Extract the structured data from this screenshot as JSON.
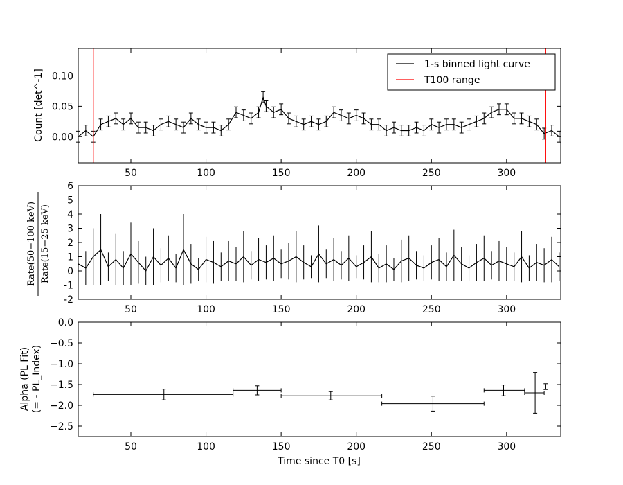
{
  "chart_data": [
    {
      "type": "line",
      "panel": "light-curve",
      "ylabel": "Count [det^-1]",
      "xlim": [
        15,
        336
      ],
      "ylim": [
        -0.043,
        0.145
      ],
      "xticks": [
        50,
        100,
        150,
        200,
        250,
        300
      ],
      "yticks": [
        0.0,
        0.05,
        0.1
      ],
      "ytick_labels": [
        "0.00",
        "0.05",
        "0.10"
      ],
      "legend": {
        "placement": "top-right",
        "entries": [
          {
            "label": "1-s binned light curve",
            "color": "#000000"
          },
          {
            "label": "T100 range",
            "color": "#ff0000"
          }
        ]
      },
      "t100_range": [
        25,
        326
      ],
      "series": [
        {
          "name": "1-s binned light curve",
          "color": "#000000",
          "error": 0.009,
          "x": [
            15,
            20,
            25,
            30,
            35,
            40,
            45,
            50,
            55,
            60,
            65,
            70,
            75,
            80,
            85,
            90,
            95,
            100,
            105,
            110,
            115,
            120,
            125,
            130,
            135,
            138,
            140,
            145,
            150,
            155,
            160,
            165,
            170,
            175,
            180,
            185,
            190,
            195,
            200,
            205,
            210,
            215,
            220,
            225,
            230,
            235,
            240,
            245,
            250,
            255,
            260,
            265,
            270,
            275,
            280,
            285,
            290,
            295,
            300,
            305,
            310,
            315,
            320,
            325,
            330,
            335
          ],
          "y": [
            0.0,
            0.01,
            0.0,
            0.02,
            0.025,
            0.03,
            0.02,
            0.03,
            0.015,
            0.015,
            0.01,
            0.02,
            0.025,
            0.02,
            0.015,
            0.03,
            0.02,
            0.015,
            0.015,
            0.01,
            0.02,
            0.04,
            0.035,
            0.03,
            0.04,
            0.065,
            0.05,
            0.04,
            0.045,
            0.03,
            0.025,
            0.02,
            0.025,
            0.02,
            0.025,
            0.04,
            0.035,
            0.03,
            0.035,
            0.03,
            0.02,
            0.02,
            0.01,
            0.015,
            0.01,
            0.01,
            0.015,
            0.01,
            0.02,
            0.015,
            0.02,
            0.02,
            0.015,
            0.02,
            0.025,
            0.03,
            0.04,
            0.045,
            0.045,
            0.03,
            0.03,
            0.025,
            0.02,
            0.005,
            0.01,
            0.0
          ]
        }
      ]
    },
    {
      "type": "line",
      "panel": "hardness-ratio",
      "ylabel_top": "Rate(50−100 keV)",
      "ylabel_bottom": "Rate(15−25 keV)",
      "xlim": [
        15,
        336
      ],
      "ylim": [
        -2,
        6
      ],
      "xticks": [
        50,
        100,
        150,
        200,
        250,
        300
      ],
      "yticks": [
        -2,
        -1,
        0,
        1,
        2,
        3,
        4,
        5,
        6
      ],
      "series": [
        {
          "name": "",
          "color": "#000000",
          "x": [
            15,
            20,
            25,
            30,
            35,
            40,
            45,
            50,
            55,
            60,
            65,
            70,
            75,
            80,
            85,
            90,
            95,
            100,
            105,
            110,
            115,
            120,
            125,
            130,
            135,
            140,
            145,
            150,
            155,
            160,
            165,
            170,
            175,
            180,
            185,
            190,
            195,
            200,
            205,
            210,
            215,
            220,
            225,
            230,
            235,
            240,
            245,
            250,
            255,
            260,
            265,
            270,
            275,
            280,
            285,
            290,
            295,
            300,
            305,
            310,
            315,
            320,
            325,
            330,
            335
          ],
          "y": [
            0.5,
            0.2,
            1.0,
            1.5,
            0.3,
            0.8,
            0.2,
            1.2,
            0.6,
            0.0,
            1.0,
            0.4,
            0.9,
            0.2,
            1.5,
            0.5,
            0.1,
            0.8,
            0.6,
            0.3,
            0.7,
            0.5,
            1.0,
            0.4,
            0.8,
            0.6,
            0.9,
            0.5,
            0.7,
            1.0,
            0.6,
            0.3,
            1.2,
            0.5,
            0.8,
            0.4,
            0.9,
            0.3,
            0.6,
            1.0,
            0.2,
            0.5,
            0.1,
            0.7,
            0.9,
            0.4,
            0.2,
            0.6,
            0.8,
            0.3,
            1.1,
            0.5,
            0.2,
            0.6,
            0.9,
            0.4,
            0.7,
            0.5,
            0.3,
            1.0,
            0.2,
            0.6,
            0.4,
            0.8,
            0.3
          ],
          "err": [
            1.5,
            1.2,
            2.0,
            2.5,
            1.0,
            1.8,
            1.2,
            2.2,
            1.5,
            1.0,
            2.0,
            1.2,
            1.6,
            1.0,
            2.5,
            1.4,
            0.8,
            1.6,
            1.5,
            1.0,
            1.4,
            1.2,
            1.8,
            1.0,
            1.5,
            1.2,
            1.6,
            1.0,
            1.3,
            1.8,
            1.2,
            0.8,
            2.0,
            1.0,
            1.5,
            1.0,
            1.6,
            0.8,
            1.2,
            1.8,
            1.0,
            1.3,
            0.8,
            1.5,
            1.6,
            1.0,
            0.9,
            1.2,
            1.5,
            1.0,
            1.8,
            1.2,
            0.9,
            1.3,
            1.6,
            1.0,
            1.4,
            1.2,
            1.0,
            1.8,
            0.9,
            1.3,
            1.2,
            1.6,
            1.0
          ]
        }
      ]
    },
    {
      "type": "scatter",
      "panel": "alpha",
      "ylabel_line1": "Alpha (PL Fit)",
      "ylabel_line2": "(= - PL_Index)",
      "xlabel": "Time since T0 [s]",
      "xlim": [
        15,
        336
      ],
      "ylim": [
        -2.75,
        0.0
      ],
      "xticks": [
        50,
        100,
        150,
        200,
        250,
        300
      ],
      "yticks": [
        0.0,
        -0.5,
        -1.0,
        -1.5,
        -2.0,
        -2.5
      ],
      "ytick_labels": [
        "0.0",
        "−0.5",
        "−1.0",
        "−1.5",
        "−2.0",
        "−2.5"
      ],
      "series": [
        {
          "name": "",
          "color": "#000000",
          "points": [
            {
              "x": 72,
              "x_lo": 25,
              "x_hi": 118,
              "y": -1.74,
              "y_err": 0.13
            },
            {
              "x": 134,
              "x_lo": 118,
              "x_hi": 150,
              "y": -1.64,
              "y_err": 0.11
            },
            {
              "x": 183,
              "x_lo": 150,
              "x_hi": 217,
              "y": -1.77,
              "y_err": 0.1
            },
            {
              "x": 251,
              "x_lo": 217,
              "x_hi": 285,
              "y": -1.96,
              "y_err": 0.18
            },
            {
              "x": 298,
              "x_lo": 285,
              "x_hi": 312,
              "y": -1.64,
              "y_err": 0.13
            },
            {
              "x": 319,
              "x_lo": 312,
              "x_hi": 325,
              "y": -1.7,
              "y_err": 0.49
            },
            {
              "x": 326,
              "x_lo": 326,
              "x_hi": 326,
              "y": -1.55,
              "y_err": 0.07
            }
          ]
        }
      ]
    }
  ]
}
